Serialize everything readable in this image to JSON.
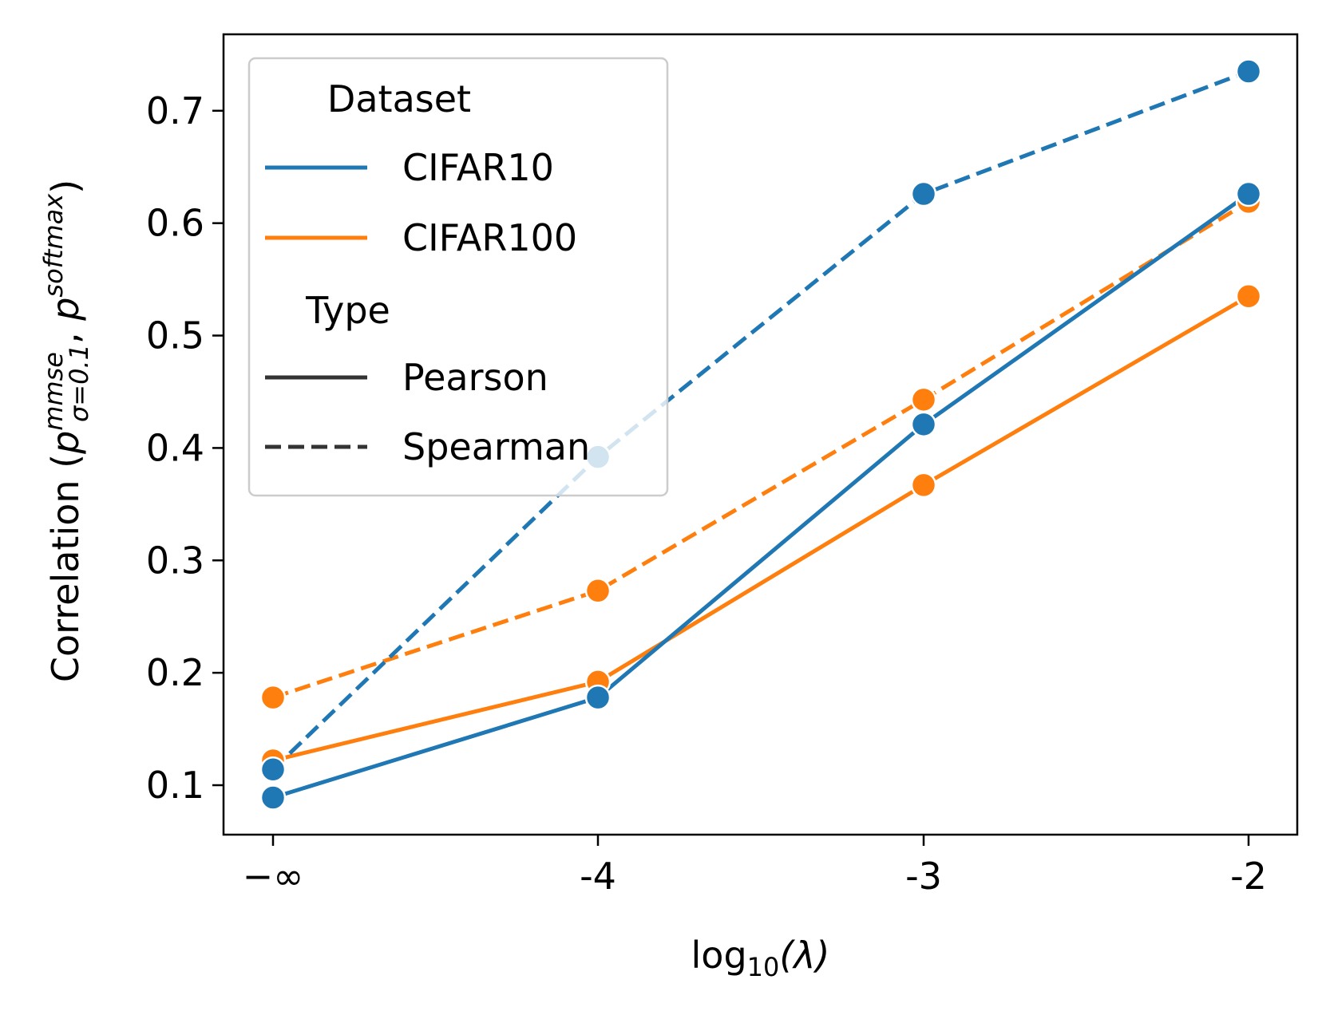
{
  "chart_data": {
    "type": "line",
    "title": "",
    "xlabel": "log10(λ)",
    "xlabel_parts": {
      "base": "log",
      "sub": "10",
      "arg": "(λ)"
    },
    "ylabel": "Correlation (p^mmse_σ=0.1, p^softmax)",
    "ylabel_parts": {
      "prefix": "Correlation (",
      "p1": "p",
      "p1_sup": "mmse",
      "p1_sub": "σ=0.1",
      "sep": ", ",
      "p2": "p",
      "p2_sup": "softmax",
      "suffix": ")"
    },
    "categories": [
      "−∞",
      "-4",
      "-3",
      "-2"
    ],
    "yticks": [
      "0.1",
      "0.2",
      "0.3",
      "0.4",
      "0.5",
      "0.6",
      "0.7"
    ],
    "ytick_values": [
      0.1,
      0.2,
      0.3,
      0.4,
      0.5,
      0.6,
      0.7
    ],
    "ylim": [
      0.056,
      0.768
    ],
    "series": [
      {
        "name": "CIFAR10 Pearson",
        "dataset": "CIFAR10",
        "type": "Pearson",
        "color": "#1f77b4",
        "dash": "solid",
        "values": [
          0.089,
          0.178,
          0.421,
          0.626
        ]
      },
      {
        "name": "CIFAR10 Spearman",
        "dataset": "CIFAR10",
        "type": "Spearman",
        "color": "#1f77b4",
        "dash": "dashed",
        "values": [
          0.114,
          0.392,
          0.626,
          0.735
        ]
      },
      {
        "name": "CIFAR100 Pearson",
        "dataset": "CIFAR100",
        "type": "Pearson",
        "color": "#ff7f0e",
        "dash": "solid",
        "values": [
          0.122,
          0.192,
          0.367,
          0.535
        ]
      },
      {
        "name": "CIFAR100 Spearman",
        "dataset": "CIFAR100",
        "type": "Spearman",
        "color": "#ff7f0e",
        "dash": "dashed",
        "values": [
          0.178,
          0.273,
          0.443,
          0.619
        ]
      }
    ],
    "legend": {
      "placement": "top-left",
      "dataset_title": "Dataset",
      "dataset_entries": [
        {
          "label": "CIFAR10",
          "color": "#1f77b4"
        },
        {
          "label": "CIFAR100",
          "color": "#ff7f0e"
        }
      ],
      "type_title": "Type",
      "type_entries": [
        {
          "label": "Pearson",
          "dash": "solid"
        },
        {
          "label": "Spearman",
          "dash": "dashed"
        }
      ]
    }
  }
}
